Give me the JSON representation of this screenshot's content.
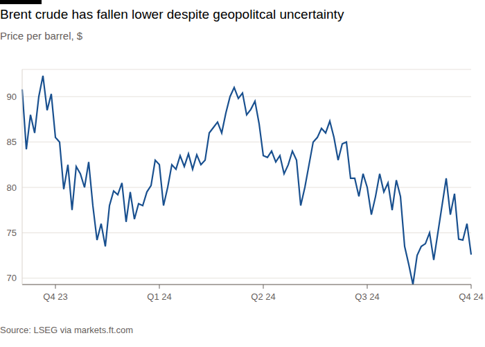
{
  "chart_data": {
    "type": "line",
    "title": "Brent crude has fallen lower despite geopolitcal uncertainty",
    "subtitle": "Price per barrel, $",
    "source": "Source: LSEG via markets.ft.com",
    "categories": [
      null,
      null,
      null,
      null,
      null,
      null,
      null,
      null,
      "Q4 23",
      null,
      null,
      null,
      null,
      null,
      null,
      null,
      null,
      null,
      null,
      null,
      null,
      null,
      null,
      null,
      null,
      null,
      null,
      null,
      null,
      null,
      null,
      null,
      null,
      "Q1 24",
      null,
      null,
      null,
      null,
      null,
      null,
      null,
      null,
      null,
      null,
      null,
      null,
      null,
      null,
      null,
      null,
      null,
      null,
      null,
      null,
      null,
      null,
      null,
      null,
      "Q2 24",
      null,
      null,
      null,
      null,
      null,
      null,
      null,
      null,
      null,
      null,
      null,
      null,
      null,
      null,
      null,
      null,
      null,
      null,
      null,
      null,
      null,
      null,
      null,
      null,
      "Q3 24",
      null,
      null,
      null,
      null,
      null,
      null,
      null,
      null,
      null,
      null,
      null,
      null,
      null,
      null,
      null,
      null,
      null,
      null,
      null,
      null,
      null,
      null,
      null,
      null,
      "Q4 24"
    ],
    "series": [
      {
        "name": "Brent crude",
        "color": "#19508f",
        "values": [
          90.8,
          84.2,
          88.0,
          86.0,
          90.0,
          92.3,
          88.5,
          90.3,
          85.5,
          85.0,
          79.8,
          82.5,
          77.5,
          82.3,
          81.5,
          80.0,
          82.8,
          78.0,
          74.2,
          76.0,
          73.5,
          78.0,
          79.6,
          79.2,
          80.5,
          76.2,
          79.5,
          76.5,
          78.2,
          78.0,
          79.5,
          80.2,
          83.0,
          82.5,
          78.0,
          80.0,
          82.5,
          82.0,
          83.5,
          82.3,
          83.7,
          82.0,
          83.6,
          82.5,
          83.0,
          86.0,
          86.6,
          87.2,
          86.0,
          88.2,
          90.0,
          91.0,
          89.8,
          90.4,
          88.0,
          88.6,
          89.5,
          87.0,
          83.5,
          83.3,
          84.0,
          82.8,
          83.5,
          81.5,
          82.5,
          84.0,
          83.0,
          78.0,
          80.0,
          82.5,
          85.0,
          85.5,
          86.5,
          86.0,
          87.3,
          85.5,
          83.0,
          84.8,
          85.0,
          81.0,
          81.0,
          79.0,
          81.5,
          80.0,
          77.0,
          79.0,
          81.5,
          79.5,
          80.5,
          77.5,
          80.8,
          79.0,
          73.5,
          71.5,
          69.3,
          72.5,
          73.5,
          73.8,
          75.0,
          72.0,
          75.0,
          78.0,
          81.0,
          77.0,
          79.3,
          74.3,
          74.2,
          76.0,
          72.6
        ]
      }
    ],
    "ylim": [
      69.3,
      93
    ],
    "yticks": [
      70,
      75,
      80,
      85,
      90
    ],
    "grid": true
  }
}
